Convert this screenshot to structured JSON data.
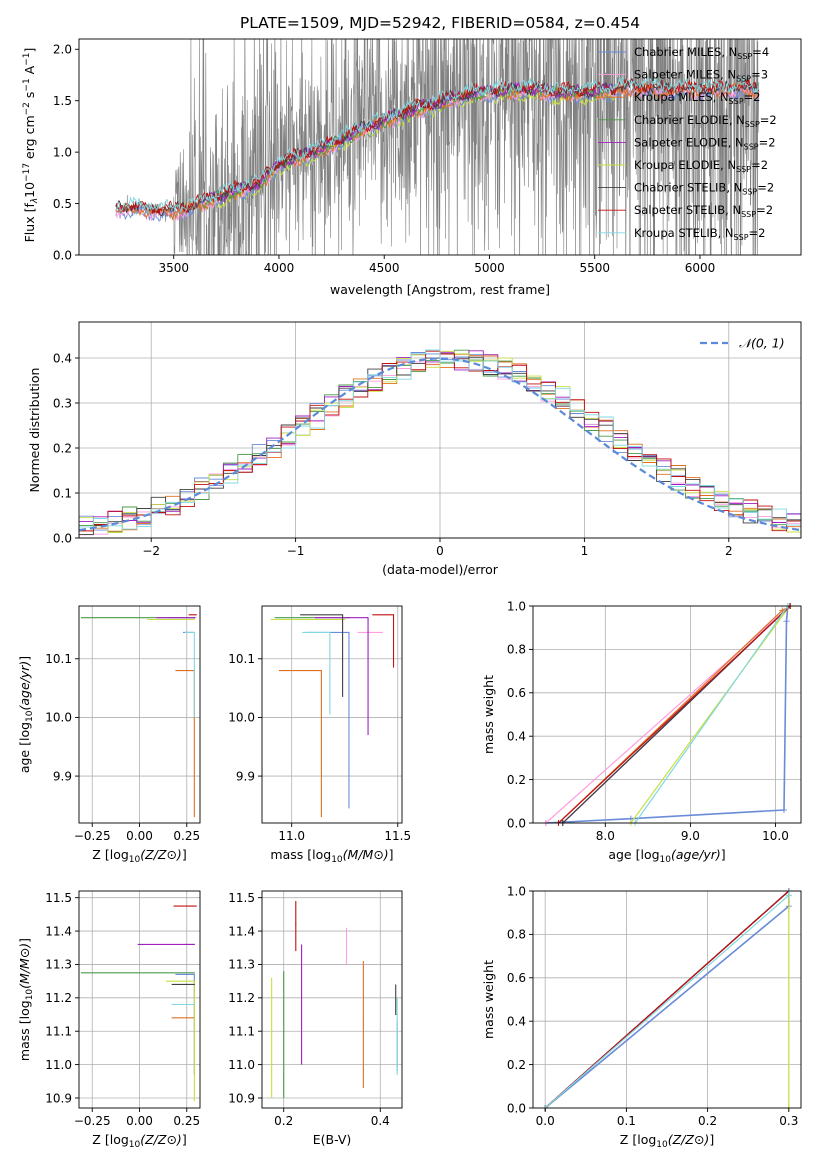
{
  "figure": {
    "title": "PLATE=1509, MJD=52942, FIBERID=0584, z=0.454"
  },
  "colors": {
    "Chabrier MILES": "#6a8cd8",
    "Salpeter MILES": "#ff9de0",
    "Kroupa MILES": "#e07020",
    "Chabrier ELODIE": "#4a9a4a",
    "Salpeter ELODIE": "#a020c0",
    "Kroupa ELODIE": "#c8e040",
    "Chabrier STELIB": "#404040",
    "Salpeter STELIB": "#c01010",
    "Kroupa STELIB": "#80d8e0",
    "data": "#808080",
    "gaussian": "#5b8bd8",
    "grid": "#b0b0b0"
  },
  "chart_data": [
    {
      "id": "spectrum",
      "type": "line",
      "xlabel": "wavelength [Angstrom, rest frame]",
      "ylabel": "Flux [f$_\\lambda$10$^{-17}$ erg cm$^{-2}$ s$^{-1}$ A$^{-1}$]",
      "ylabel_parts": {
        "main": "Flux [f",
        "sub": "λ",
        "mid": "10",
        "sup1": "−17",
        "mid2": " erg cm",
        "sup2": "−2",
        "mid3": " s",
        "sup3": "−1",
        "mid4": " A",
        "sup4": "−1",
        "end": "]"
      },
      "xlim": [
        3050,
        6480
      ],
      "ylim": [
        0,
        2.1
      ],
      "xticks": [
        3500,
        4000,
        4500,
        5000,
        5500,
        6000
      ],
      "yticks": [
        0.0,
        0.5,
        1.0,
        1.5,
        2.0
      ],
      "grid": false,
      "legend_placement": "upper-right",
      "legend": [
        {
          "name": "Chabrier MILES",
          "nssp": "4"
        },
        {
          "name": "Salpeter MILES",
          "nssp": "3"
        },
        {
          "name": "Kroupa MILES",
          "nssp": "2"
        },
        {
          "name": "Chabrier ELODIE",
          "nssp": "2"
        },
        {
          "name": "Salpeter ELODIE",
          "nssp": "2"
        },
        {
          "name": "Kroupa ELODIE",
          "nssp": "2"
        },
        {
          "name": "Chabrier STELIB",
          "nssp": "2"
        },
        {
          "name": "Salpeter STELIB",
          "nssp": "2"
        },
        {
          "name": "Kroupa STELIB",
          "nssp": "2"
        }
      ],
      "nssp_label": "N",
      "nssp_sub": "SSP",
      "model_continuum": {
        "x": [
          3220,
          3300,
          3400,
          3500,
          3600,
          3700,
          3800,
          3900,
          4000,
          4100,
          4200,
          4300,
          4400,
          4500,
          4600,
          4700,
          4800,
          4900,
          5000,
          5100,
          5200,
          5300,
          5400,
          5500,
          5600,
          5700,
          5800,
          5900,
          6000,
          6100,
          6200,
          6280
        ],
        "y": [
          0.45,
          0.45,
          0.43,
          0.42,
          0.47,
          0.55,
          0.62,
          0.68,
          0.88,
          0.95,
          1.02,
          1.12,
          1.22,
          1.3,
          1.38,
          1.44,
          1.5,
          1.55,
          1.58,
          1.6,
          1.6,
          1.58,
          1.57,
          1.58,
          1.6,
          1.62,
          1.6,
          1.6,
          1.6,
          1.6,
          1.62,
          1.58
        ]
      }
    },
    {
      "id": "residuals",
      "type": "bar",
      "xlabel": "(data-model)/error",
      "ylabel": "Normed distribution",
      "xlim": [
        -2.5,
        2.5
      ],
      "ylim": [
        0,
        0.48
      ],
      "xticks": [
        -2,
        -1,
        0,
        1,
        2
      ],
      "yticks": [
        0.0,
        0.1,
        0.2,
        0.3,
        0.4
      ],
      "grid": true,
      "legend_placement": "upper-right",
      "legend": [
        {
          "name": "N(0,1)"
        }
      ],
      "gaussian_label": "𝒩(0, 1)",
      "bin_width": 0.1
    },
    {
      "id": "age-vs-Z",
      "type": "scatter",
      "xlabel": "Z [log10(Z/Z⊙)]",
      "ylabel": "age  [log10(age/yr)]",
      "xlim": [
        -0.32,
        0.32
      ],
      "ylim": [
        9.82,
        10.19
      ],
      "xticks": [
        -0.25,
        0.0,
        0.25
      ],
      "xticklabels": [
        "−0.25",
        "0.00",
        "0.25"
      ],
      "yticks": [
        9.9,
        10.0,
        10.1
      ],
      "grid": true,
      "points": [
        {
          "model": "Chabrier MILES",
          "x": 0.28,
          "y": 10.145,
          "xerr": [
            0.05,
            0.0
          ],
          "yerr": [
            0.0,
            0.0
          ]
        },
        {
          "model": "Salpeter MILES",
          "x": 0.3,
          "y": 10.17,
          "xerr": [
            0.15,
            0.0
          ],
          "yerr": [
            0.0,
            0.0
          ]
        },
        {
          "model": "Kroupa MILES",
          "x": 0.29,
          "y": 10.08,
          "xerr": [
            0.1,
            0.0
          ],
          "yerr": [
            0.25,
            0.0
          ]
        },
        {
          "model": "Chabrier ELODIE",
          "x": 0.29,
          "y": 10.17,
          "xerr": [
            0.6,
            0.0
          ],
          "yerr": [
            0.0,
            0.0
          ]
        },
        {
          "model": "Salpeter ELODIE",
          "x": 0.29,
          "y": 10.17,
          "xerr": [
            0.2,
            0.0
          ],
          "yerr": [
            0.0,
            0.0
          ]
        },
        {
          "model": "Kroupa ELODIE",
          "x": 0.29,
          "y": 10.167,
          "xerr": [
            0.25,
            0.0
          ],
          "yerr": [
            0.0,
            0.0
          ]
        },
        {
          "model": "Chabrier STELIB",
          "x": 0.29,
          "y": 10.17,
          "xerr": [
            0.0,
            0.0
          ],
          "yerr": [
            0.0,
            0.0
          ]
        },
        {
          "model": "Salpeter STELIB",
          "x": 0.3,
          "y": 10.175,
          "xerr": [
            0.04,
            0.0
          ],
          "yerr": [
            0.0,
            0.0
          ]
        },
        {
          "model": "Kroupa STELIB",
          "x": 0.29,
          "y": 10.145,
          "xerr": [
            0.05,
            0.0
          ],
          "yerr": [
            0.145,
            0.0
          ]
        }
      ]
    },
    {
      "id": "age-vs-mass",
      "type": "scatter",
      "xlabel": "mass [log10(M/M⊙)]",
      "ylabel": "",
      "xlim": [
        10.86,
        11.52
      ],
      "ylim": [
        9.82,
        10.19
      ],
      "xticks": [
        11.0,
        11.5
      ],
      "yticks": [
        9.9,
        10.0,
        10.1
      ],
      "grid": true,
      "points": [
        {
          "model": "Chabrier MILES",
          "x": 11.27,
          "y": 10.145,
          "xerr": [
            0.2,
            0.0
          ],
          "yerr": [
            0.3,
            0.0
          ]
        },
        {
          "model": "Salpeter MILES",
          "x": 11.36,
          "y": 10.145,
          "xerr": [
            0.05,
            0.07
          ],
          "yerr": [
            0.0,
            0.0
          ]
        },
        {
          "model": "Kroupa MILES",
          "x": 11.14,
          "y": 10.08,
          "xerr": [
            0.2,
            0.0
          ],
          "yerr": [
            0.25,
            0.0
          ]
        },
        {
          "model": "Chabrier ELODIE",
          "x": 11.27,
          "y": 10.17,
          "xerr": [
            0.35,
            0.0
          ],
          "yerr": [
            0.0,
            0.0
          ]
        },
        {
          "model": "Salpeter ELODIE",
          "x": 11.36,
          "y": 10.17,
          "xerr": [
            0.25,
            0.0
          ],
          "yerr": [
            0.2,
            0.0
          ]
        },
        {
          "model": "Kroupa ELODIE",
          "x": 11.25,
          "y": 10.167,
          "xerr": [
            0.35,
            0.0
          ],
          "yerr": [
            0.0,
            0.0
          ]
        },
        {
          "model": "Chabrier STELIB",
          "x": 11.24,
          "y": 10.175,
          "xerr": [
            0.2,
            0.0
          ],
          "yerr": [
            0.14,
            0.0
          ]
        },
        {
          "model": "Salpeter STELIB",
          "x": 11.48,
          "y": 10.175,
          "xerr": [
            0.1,
            0.0
          ],
          "yerr": [
            0.09,
            0.0
          ]
        },
        {
          "model": "Kroupa STELIB",
          "x": 11.18,
          "y": 10.145,
          "xerr": [
            0.13,
            0.0
          ],
          "yerr": [
            0.14,
            0.0
          ]
        }
      ]
    },
    {
      "id": "mass-weight-vs-age",
      "type": "line",
      "xlabel": "age  [log10(age/yr)]",
      "ylabel": "mass weight",
      "xlim": [
        7.15,
        10.3
      ],
      "ylim": [
        0,
        1.0
      ],
      "xticks": [
        8,
        9,
        10
      ],
      "yticks": [
        0.0,
        0.2,
        0.4,
        0.6,
        0.8,
        1.0
      ],
      "grid": true,
      "series": [
        {
          "model": "Chabrier MILES",
          "x": [
            7.3,
            8.3,
            10.1,
            10.13,
            10.145
          ],
          "y": [
            0.0,
            0.02,
            0.06,
            0.93,
            1.0
          ]
        },
        {
          "model": "Salpeter MILES",
          "x": [
            7.3,
            10.17
          ],
          "y": [
            0.0,
            1.0
          ]
        },
        {
          "model": "Kroupa MILES",
          "x": [
            7.45,
            10.08,
            10.17
          ],
          "y": [
            0.0,
            0.98,
            1.0
          ]
        },
        {
          "model": "Chabrier ELODIE",
          "x": [
            7.5,
            10.17
          ],
          "y": [
            0.0,
            1.0
          ]
        },
        {
          "model": "Salpeter ELODIE",
          "x": [
            7.5,
            10.17
          ],
          "y": [
            0.0,
            1.0
          ]
        },
        {
          "model": "Kroupa ELODIE",
          "x": [
            8.3,
            10.167
          ],
          "y": [
            0.0,
            1.0
          ]
        },
        {
          "model": "Chabrier STELIB",
          "x": [
            7.5,
            10.17
          ],
          "y": [
            0.0,
            1.0
          ]
        },
        {
          "model": "Salpeter STELIB",
          "x": [
            7.45,
            10.175
          ],
          "y": [
            0.0,
            1.0
          ]
        },
        {
          "model": "Kroupa STELIB",
          "x": [
            8.35,
            10.145
          ],
          "y": [
            0.0,
            1.0
          ]
        }
      ]
    },
    {
      "id": "mass-vs-Z",
      "type": "scatter",
      "xlabel": "Z [log10(Z/Z⊙)]",
      "ylabel": "mass [log10(M/M⊙)]",
      "xlim": [
        -0.32,
        0.32
      ],
      "ylim": [
        10.87,
        11.52
      ],
      "xticks": [
        -0.25,
        0.0,
        0.25
      ],
      "xticklabels": [
        "−0.25",
        "0.00",
        "0.25"
      ],
      "yticks": [
        10.9,
        11.0,
        11.1,
        11.2,
        11.3,
        11.4,
        11.5
      ],
      "grid": true,
      "points": [
        {
          "model": "Chabrier MILES",
          "x": 0.29,
          "y": 11.27,
          "xerr": [
            0.1,
            0.0
          ],
          "yerr": [
            0.3,
            0.0
          ]
        },
        {
          "model": "Salpeter MILES",
          "x": 0.29,
          "y": 11.36,
          "xerr": [
            0.05,
            0.0
          ],
          "yerr": [
            0.0,
            0.0
          ]
        },
        {
          "model": "Kroupa MILES",
          "x": 0.29,
          "y": 11.14,
          "xerr": [
            0.12,
            0.0
          ],
          "yerr": [
            0.0,
            0.0
          ]
        },
        {
          "model": "Chabrier ELODIE",
          "x": 0.29,
          "y": 11.275,
          "xerr": [
            0.6,
            0.0
          ],
          "yerr": [
            0.0,
            0.0
          ]
        },
        {
          "model": "Salpeter ELODIE",
          "x": 0.29,
          "y": 11.36,
          "xerr": [
            0.3,
            0.0
          ],
          "yerr": [
            0.0,
            0.0
          ]
        },
        {
          "model": "Kroupa ELODIE",
          "x": 0.29,
          "y": 11.25,
          "xerr": [
            0.15,
            0.0
          ],
          "yerr": [
            0.36,
            0.0
          ]
        },
        {
          "model": "Chabrier STELIB",
          "x": 0.29,
          "y": 11.24,
          "xerr": [
            0.12,
            0.0
          ],
          "yerr": [
            0.0,
            0.0
          ]
        },
        {
          "model": "Salpeter STELIB",
          "x": 0.3,
          "y": 11.475,
          "xerr": [
            0.12,
            0.0
          ],
          "yerr": [
            0.0,
            0.0
          ]
        },
        {
          "model": "Kroupa STELIB",
          "x": 0.29,
          "y": 11.18,
          "xerr": [
            0.12,
            0.0
          ],
          "yerr": [
            0.0,
            0.0
          ]
        }
      ]
    },
    {
      "id": "mass-vs-EBV",
      "type": "scatter",
      "xlabel": "E(B-V)",
      "ylabel": "",
      "xlim": [
        0.155,
        0.445
      ],
      "ylim": [
        10.87,
        11.52
      ],
      "xticks": [
        0.2,
        0.4
      ],
      "yticks": [
        10.9,
        11.0,
        11.1,
        11.2,
        11.3,
        11.4,
        11.5
      ],
      "grid": true,
      "points": [
        {
          "model": "Chabrier MILES",
          "x": 0.435,
          "y": 11.13,
          "xerr": [
            0.0,
            0.0
          ],
          "yerr": [
            0.15,
            0.0
          ]
        },
        {
          "model": "Salpeter MILES",
          "x": 0.33,
          "y": 11.3,
          "xerr": [
            0.0,
            0.0
          ],
          "yerr": [
            0.0,
            0.11
          ]
        },
        {
          "model": "Kroupa MILES",
          "x": 0.365,
          "y": 11.13,
          "xerr": [
            0.0,
            0.0
          ],
          "yerr": [
            0.2,
            0.18
          ]
        },
        {
          "model": "Chabrier ELODIE",
          "x": 0.2,
          "y": 11.1,
          "xerr": [
            0.0,
            0.0
          ],
          "yerr": [
            0.2,
            0.18
          ]
        },
        {
          "model": "Salpeter ELODIE",
          "x": 0.237,
          "y": 11.2,
          "xerr": [
            0.0,
            0.0
          ],
          "yerr": [
            0.2,
            0.16
          ]
        },
        {
          "model": "Kroupa ELODIE",
          "x": 0.175,
          "y": 11.1,
          "xerr": [
            0.0,
            0.0
          ],
          "yerr": [
            0.2,
            0.16
          ]
        },
        {
          "model": "Chabrier STELIB",
          "x": 0.432,
          "y": 11.15,
          "xerr": [
            0.0,
            0.0
          ],
          "yerr": [
            0.0,
            0.09
          ]
        },
        {
          "model": "Salpeter STELIB",
          "x": 0.225,
          "y": 11.42,
          "xerr": [
            0.0,
            0.0
          ],
          "yerr": [
            0.08,
            0.07
          ]
        },
        {
          "model": "Kroupa STELIB",
          "x": 0.435,
          "y": 11.1,
          "xerr": [
            0.0,
            0.0
          ],
          "yerr": [
            0.13,
            0.1
          ]
        }
      ]
    },
    {
      "id": "mass-weight-vs-Z",
      "type": "line",
      "xlabel": "Z [log10(Z/Z⊙)]",
      "ylabel": "mass weight",
      "xlim": [
        -0.015,
        0.315
      ],
      "ylim": [
        0,
        1.0
      ],
      "xticks": [
        0.0,
        0.1,
        0.2,
        0.3
      ],
      "yticks": [
        0.0,
        0.2,
        0.4,
        0.6,
        0.8,
        1.0
      ],
      "grid": true,
      "series": [
        {
          "model": "Chabrier MILES",
          "x": [
            0.0,
            0.3,
            0.3
          ],
          "y": [
            0.0,
            0.93,
            1.0
          ]
        },
        {
          "model": "Salpeter MILES",
          "x": [
            0.0,
            0.3
          ],
          "y": [
            0.0,
            1.0
          ]
        },
        {
          "model": "Kroupa MILES",
          "x": [
            0.0,
            0.3
          ],
          "y": [
            0.0,
            1.0
          ]
        },
        {
          "model": "Chabrier ELODIE",
          "x": [
            0.0,
            0.3
          ],
          "y": [
            0.0,
            1.0
          ]
        },
        {
          "model": "Salpeter ELODIE",
          "x": [
            0.0,
            0.3
          ],
          "y": [
            0.0,
            1.0
          ]
        },
        {
          "model": "Kroupa ELODIE",
          "x": [
            0.3,
            0.3,
            0.3
          ],
          "y": [
            0.0,
            0.98,
            1.0
          ]
        },
        {
          "model": "Chabrier STELIB",
          "x": [
            0.0,
            0.3
          ],
          "y": [
            0.0,
            1.0
          ]
        },
        {
          "model": "Salpeter STELIB",
          "x": [
            0.0,
            0.3
          ],
          "y": [
            0.0,
            1.0
          ]
        },
        {
          "model": "Kroupa STELIB",
          "x": [
            0.0,
            0.3,
            0.3
          ],
          "y": [
            0.0,
            0.98,
            1.0
          ]
        }
      ]
    }
  ]
}
